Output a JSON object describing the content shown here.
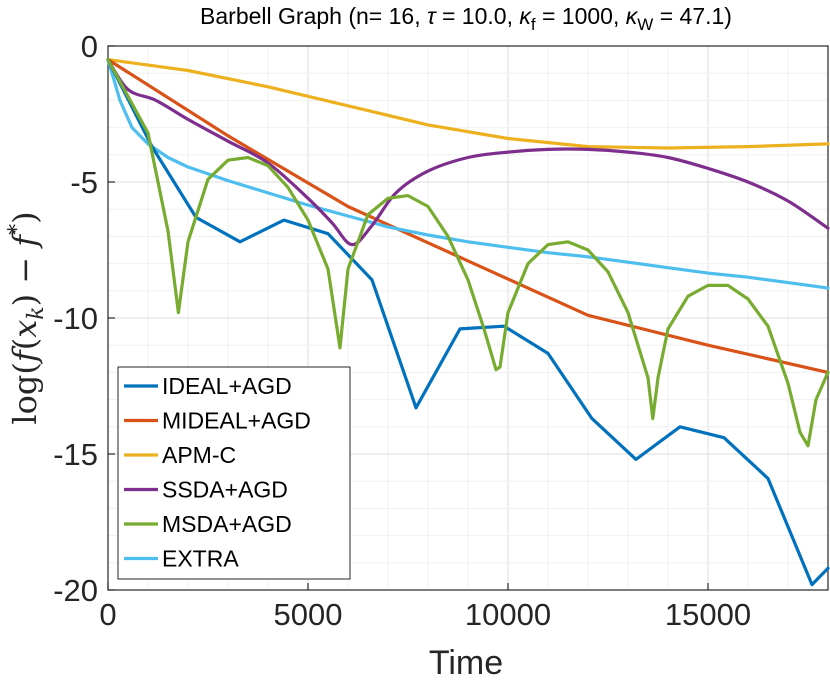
{
  "chart_data": {
    "type": "line",
    "title": "Barbell Graph (n= 16, τ = 10.0, κ_f = 1000, κ_W = 47.1)",
    "title_parts": {
      "prefix": "Barbell Graph (n= 16, ",
      "tau_symbol": "τ",
      "tau_text": " = 10.0, ",
      "kappa_f_symbol": "κ",
      "kappa_f_sub": "f",
      "kappa_f_text": " = 1000, ",
      "kappa_w_symbol": "κ",
      "kappa_w_sub": "W",
      "kappa_w_text": " = 47.1)"
    },
    "xlabel": "Time",
    "ylabel": "log(f(x_k) − f*)",
    "ylabel_parts": {
      "log": "log(",
      "f": "f",
      "open": "(",
      "x": "x",
      "k": "k",
      "close": ") − ",
      "fstar": "f",
      "star": "*",
      "end": ")"
    },
    "xlim": [
      0,
      18000
    ],
    "ylim": [
      -20,
      0
    ],
    "xticks": [
      0,
      5000,
      10000,
      15000
    ],
    "xtick_labels": [
      "0",
      "5000",
      "10000",
      "15000"
    ],
    "yticks": [
      0,
      -5,
      -10,
      -15,
      -20
    ],
    "ytick_labels": [
      "0",
      "-5",
      "-10",
      "-15",
      "-20"
    ],
    "grid": true,
    "legend_position": "bottom-left",
    "series": [
      {
        "name": "IDEAL+AGD",
        "color": "#0072bd",
        "x": [
          0,
          1100,
          2200,
          3300,
          4400,
          5500,
          6600,
          7700,
          8800,
          9900,
          11000,
          12100,
          13200,
          14300,
          15400,
          16500,
          17600,
          18000
        ],
        "y": [
          -0.5,
          -3.7,
          -6.3,
          -7.2,
          -6.4,
          -6.9,
          -8.6,
          -13.3,
          -10.4,
          -10.3,
          -11.3,
          -13.7,
          -15.2,
          -14.0,
          -14.4,
          -15.9,
          -19.8,
          -19.2
        ]
      },
      {
        "name": "MIDEAL+AGD",
        "color": "#d95319",
        "x": [
          0,
          3000,
          6000,
          9000,
          12000,
          15000,
          18000
        ],
        "y": [
          -0.5,
          -3.3,
          -5.9,
          -7.9,
          -9.9,
          -11.0,
          -12.0
        ]
      },
      {
        "name": "APM-C",
        "color": "#edb120",
        "x": [
          0,
          2000,
          4000,
          6000,
          8000,
          10000,
          12000,
          14000,
          16000,
          18000
        ],
        "y": [
          -0.5,
          -0.9,
          -1.5,
          -2.2,
          -2.9,
          -3.4,
          -3.7,
          -3.75,
          -3.7,
          -3.6
        ]
      },
      {
        "name": "SSDA+AGD",
        "color": "#7e2f8e",
        "x": [
          0,
          500,
          1200,
          2000,
          3000,
          4000,
          5000,
          5600,
          6100,
          6600,
          7200,
          8000,
          9000,
          10000,
          11000,
          12000,
          13000,
          14000,
          15000,
          16000,
          17000,
          18000
        ],
        "y": [
          -0.5,
          -1.6,
          -2.0,
          -2.7,
          -3.5,
          -4.3,
          -5.6,
          -6.5,
          -7.3,
          -6.6,
          -5.4,
          -4.6,
          -4.1,
          -3.9,
          -3.8,
          -3.8,
          -3.9,
          -4.1,
          -4.5,
          -5.0,
          -5.7,
          -6.7
        ],
        "smooth": true
      },
      {
        "name": "MSDA+AGD",
        "color": "#77ac30",
        "x": [
          0,
          1000,
          1500,
          1760,
          2000,
          2500,
          3000,
          3500,
          4000,
          4500,
          5000,
          5500,
          5800,
          6000,
          6500,
          7000,
          7500,
          8000,
          8500,
          9000,
          9400,
          9700,
          9800,
          10000,
          10500,
          11000,
          11500,
          12000,
          12500,
          13000,
          13500,
          13620,
          13750,
          14000,
          14500,
          15000,
          15500,
          16000,
          16500,
          17000,
          17300,
          17500,
          17700,
          18000
        ],
        "y": [
          -0.5,
          -3.2,
          -6.8,
          -9.8,
          -7.2,
          -4.9,
          -4.2,
          -4.1,
          -4.4,
          -5.2,
          -6.4,
          -8.2,
          -11.1,
          -8.2,
          -6.2,
          -5.6,
          -5.5,
          -5.9,
          -7.0,
          -8.6,
          -10.4,
          -11.9,
          -11.8,
          -9.8,
          -8.0,
          -7.3,
          -7.2,
          -7.5,
          -8.3,
          -9.8,
          -12.2,
          -13.7,
          -12.2,
          -10.4,
          -9.2,
          -8.8,
          -8.8,
          -9.3,
          -10.3,
          -12.4,
          -14.2,
          -14.7,
          -13.0,
          -12.0
        ]
      },
      {
        "name": "EXTRA",
        "color": "#4dbeee",
        "x": [
          0,
          300,
          600,
          1000,
          1500,
          2000,
          3000,
          4000,
          5000,
          6000,
          7000,
          8000,
          9000,
          10000,
          11000,
          12000,
          13000,
          14000,
          15000,
          16000,
          17000,
          18000
        ],
        "y": [
          -0.5,
          -2.0,
          -3.0,
          -3.6,
          -4.1,
          -4.45,
          -4.95,
          -5.4,
          -5.85,
          -6.25,
          -6.65,
          -6.95,
          -7.2,
          -7.4,
          -7.6,
          -7.75,
          -7.95,
          -8.15,
          -8.35,
          -8.5,
          -8.7,
          -8.9
        ]
      }
    ]
  }
}
